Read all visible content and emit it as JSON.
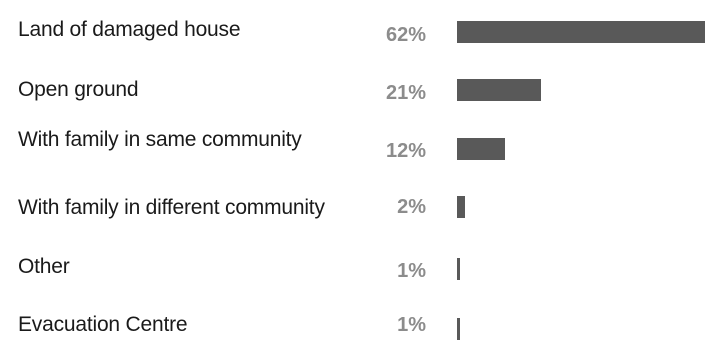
{
  "chart_data": {
    "type": "bar",
    "orientation": "horizontal",
    "categories": [
      "Land of damaged house",
      "Open ground",
      "With family in same community",
      "With family in different community",
      "Other",
      "Evacuation Centre"
    ],
    "values": [
      62,
      21,
      12,
      2,
      1,
      1
    ],
    "value_labels": [
      "62%",
      "21%",
      "12%",
      "2%",
      "1%",
      "1%"
    ],
    "xlim": [
      0,
      62
    ],
    "grid": false,
    "legend": "none",
    "bar_color": "#595959",
    "value_label_color": "#8c8c8c",
    "category_label_color": "#1a1a1a"
  }
}
